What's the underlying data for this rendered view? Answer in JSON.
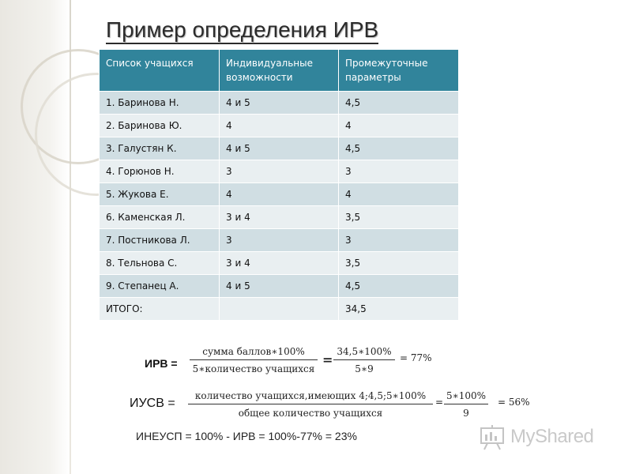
{
  "title": "Пример определения ИРВ",
  "table": {
    "headers": [
      "Список учащихся",
      "Индивидуальные возможности",
      "Промежуточные параметры"
    ],
    "rows": [
      [
        "1. Баринова Н.",
        "4 и 5",
        "4,5"
      ],
      [
        "2. Баринова Ю.",
        "4",
        "4"
      ],
      [
        "3. Галустян К.",
        "4 и 5",
        "4,5"
      ],
      [
        "4. Горюнов Н.",
        "3",
        "3"
      ],
      [
        "5. Жукова Е.",
        "4",
        "4"
      ],
      [
        "6. Каменская Л.",
        "3 и 4",
        "3,5"
      ],
      [
        "7. Постникова Л.",
        "3",
        "3"
      ],
      [
        "8. Тельнова С.",
        "3 и 4",
        "3,5"
      ],
      [
        "9. Степанец А.",
        "4 и 5",
        "4,5"
      ]
    ],
    "total": [
      "ИТОГО:",
      "",
      "34,5"
    ]
  },
  "formula_irv": {
    "label": "ИРВ =",
    "numerator": "сумма баллов∗100%",
    "denominator": "5∗количество учащихся",
    "equals": "=",
    "num2": "34,5∗100%",
    "den2": "5∗9",
    "result": "= 77%"
  },
  "formula_iusv": {
    "label": "ИУСВ =",
    "numerator": "количество учащихся,имеющих 4;4,5;5∗100%",
    "denominator": "общее количество учащихся",
    "equals": "=",
    "num2": "5∗100%",
    "den2": "9",
    "result": "= 56%"
  },
  "bottom_equation": "ИНЕУСП = 100% - ИРВ = 100%-77% = 23%",
  "watermark": {
    "text": "MyShared",
    "icon": "presentation-board-icon"
  },
  "colors": {
    "header": "#31849b",
    "row_odd": "#d0dee3",
    "row_even": "#e9eff1"
  }
}
